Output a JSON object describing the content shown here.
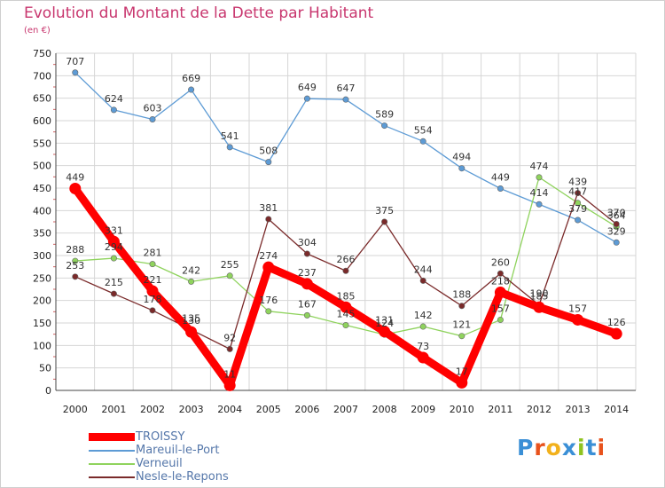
{
  "title": "Evolution du Montant de la Dette par Habitant",
  "unit": "(en €)",
  "logo": {
    "text": "Proxiti",
    "colors": [
      "#3a8fd6",
      "#e8521c",
      "#f2b11c",
      "#3a8fd6",
      "#8fc31f",
      "#3a8fd6",
      "#e8521c"
    ]
  },
  "chart_data": {
    "type": "line",
    "x": [
      "2000",
      "2001",
      "2002",
      "2003",
      "2004",
      "2005",
      "2006",
      "2007",
      "2008",
      "2009",
      "2010",
      "2011",
      "2012",
      "2013",
      "2014"
    ],
    "ylim": [
      0,
      750
    ],
    "yticks": [
      0,
      50,
      100,
      150,
      200,
      250,
      300,
      350,
      400,
      450,
      500,
      550,
      600,
      650,
      700,
      750
    ],
    "grid": true,
    "legend_position": "bottom-left",
    "series": [
      {
        "name": "TROISSY",
        "color": "#ff0000",
        "values": [
          449,
          331,
          221,
          130,
          11,
          274,
          237,
          185,
          131,
          73,
          17,
          218,
          185,
          157,
          126
        ],
        "labels": [
          "449",
          "331",
          "221",
          "130",
          "11",
          "274",
          "237",
          "185",
          "131",
          "73",
          "17",
          "218",
          "185",
          "157",
          "126"
        ]
      },
      {
        "name": "Mareuil-le-Port",
        "color": "#5d9bd5",
        "values": [
          707,
          624,
          603,
          669,
          541,
          508,
          649,
          647,
          589,
          554,
          494,
          449,
          414,
          379,
          329
        ],
        "labels": [
          "707",
          "624",
          "603",
          "669",
          "541",
          "508",
          "649",
          "647",
          "589",
          "554",
          "494",
          "449",
          "414",
          "379",
          "329"
        ]
      },
      {
        "name": "Verneuil",
        "color": "#8fd35d",
        "values": [
          288,
          294,
          281,
          242,
          255,
          176,
          167,
          145,
          124,
          142,
          121,
          157,
          474,
          417,
          364
        ],
        "labels": [
          "288",
          "294",
          "281",
          "242",
          "255",
          "176",
          "167",
          "145",
          "124",
          "142",
          "121",
          "157",
          "474",
          "417",
          "364"
        ]
      },
      {
        "name": "Nesle-le-Repons",
        "color": "#7a2a2a",
        "values": [
          253,
          215,
          178,
          135,
          92,
          381,
          304,
          266,
          375,
          244,
          188,
          260,
          190,
          439,
          370
        ],
        "labels": [
          "253",
          "215",
          "178",
          "135",
          "92",
          "381",
          "304",
          "266",
          "375",
          "244",
          "188",
          "260",
          "190",
          "439",
          "370"
        ]
      }
    ]
  }
}
